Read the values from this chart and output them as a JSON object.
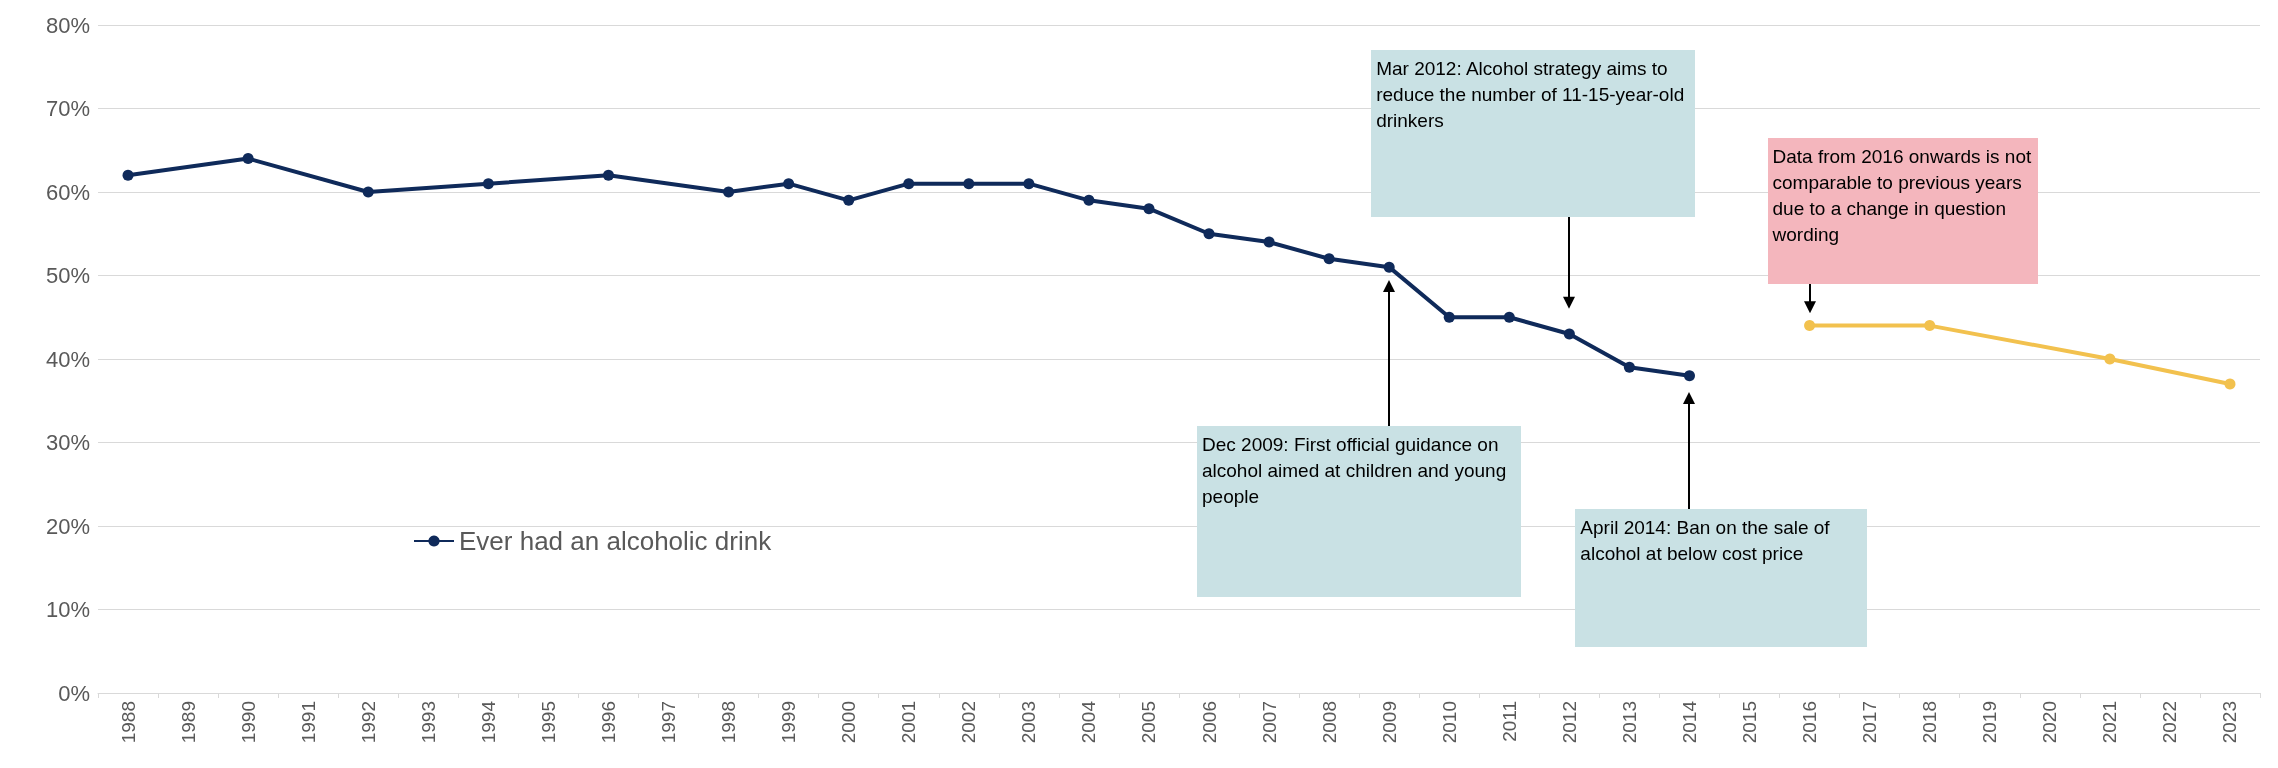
{
  "chart_data": {
    "type": "line",
    "categories": [
      "1988",
      "1989",
      "1990",
      "1991",
      "1992",
      "1993",
      "1994",
      "1995",
      "1996",
      "1997",
      "1998",
      "1999",
      "2000",
      "2001",
      "2002",
      "2003",
      "2004",
      "2005",
      "2006",
      "2007",
      "2008",
      "2009",
      "2010",
      "2011",
      "2012",
      "2013",
      "2014",
      "2015",
      "2016",
      "2017",
      "2018",
      "2019",
      "2020",
      "2021",
      "2022",
      "2023"
    ],
    "series": [
      {
        "name": "Ever had an alcoholic drink",
        "color": "#0f2a5a",
        "values": [
          62,
          null,
          64,
          null,
          60,
          null,
          61,
          null,
          62,
          null,
          60,
          61,
          59,
          61,
          61,
          61,
          59,
          58,
          55,
          54,
          52,
          51,
          45,
          45,
          43,
          39,
          38,
          null,
          null,
          null,
          null,
          null,
          null,
          null,
          null,
          null
        ]
      },
      {
        "color": "#f2c14e",
        "values": [
          null,
          null,
          null,
          null,
          null,
          null,
          null,
          null,
          null,
          null,
          null,
          null,
          null,
          null,
          null,
          null,
          null,
          null,
          null,
          null,
          null,
          null,
          null,
          null,
          null,
          null,
          null,
          null,
          44,
          null,
          44,
          null,
          null,
          40,
          null,
          37
        ]
      }
    ],
    "ylim": [
      0,
      80
    ],
    "yticks": [
      {
        "value": 0,
        "label": "0%"
      },
      {
        "value": 10,
        "label": "10%"
      },
      {
        "value": 20,
        "label": "20%"
      },
      {
        "value": 30,
        "label": "30%"
      },
      {
        "value": 40,
        "label": "40%"
      },
      {
        "value": 50,
        "label": "50%"
      },
      {
        "value": 60,
        "label": "60%"
      },
      {
        "value": 70,
        "label": "70%"
      },
      {
        "value": 80,
        "label": "80%"
      }
    ],
    "grid": "y",
    "legend": "left",
    "marker": "circle",
    "line_style": "solid",
    "annotations": [
      "Dec 2009: First official guidance on alcohol aimed at children and young people",
      "Mar 2012: Alcohol strategy aims to reduce the number of 11-15-year-old drinkers",
      "April 2014: Ban on the sale of alcohol at below cost price",
      "Data from 2016 onwards is not comparable to previous years due to a change in question wording"
    ]
  }
}
